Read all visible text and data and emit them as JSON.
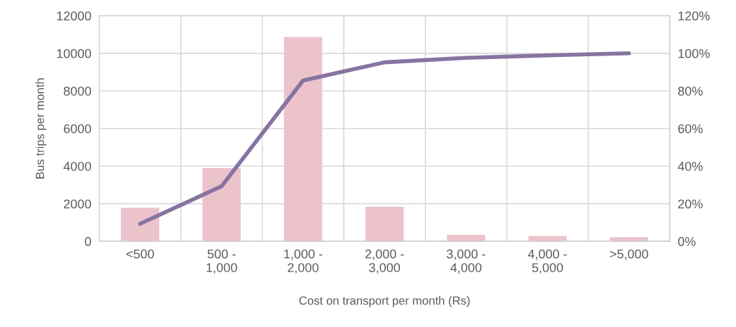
{
  "chart_data": {
    "type": "bar",
    "xlabel": "Cost on transport per month (Rs)",
    "ylabel": "Bus trips per month",
    "categories": [
      "<500",
      "500 -\n1,000",
      "1,000 -\n2,000",
      "2,000 -\n3,000",
      "3,000 -\n4,000",
      "4,000 -\n5,000",
      ">5,000"
    ],
    "series": [
      {
        "color": "#ecc3cb",
        "values": [
          1780,
          3900,
          10870,
          1840,
          340,
          280,
          220
        ]
      },
      {
        "type": "line",
        "axis": "y2",
        "color": "#8674a1",
        "values": [
          9.3,
          29.3,
          85.5,
          95.2,
          97.6,
          98.9,
          100
        ]
      }
    ],
    "ylim": [
      0,
      12000
    ],
    "yticks": [
      0,
      2000,
      4000,
      6000,
      8000,
      10000,
      12000
    ],
    "y2lim": [
      0,
      120
    ],
    "y2ticks": [
      {
        "value": 0,
        "label": "0%"
      },
      {
        "value": 20,
        "label": "20%"
      },
      {
        "value": 40,
        "label": "40%"
      },
      {
        "value": 60,
        "label": "60%"
      },
      {
        "value": 80,
        "label": "80%"
      },
      {
        "value": 100,
        "label": "100%"
      },
      {
        "value": 120,
        "label": "120%"
      }
    ],
    "grid": true,
    "legend": false,
    "marker": "none",
    "line_style": "solid"
  }
}
